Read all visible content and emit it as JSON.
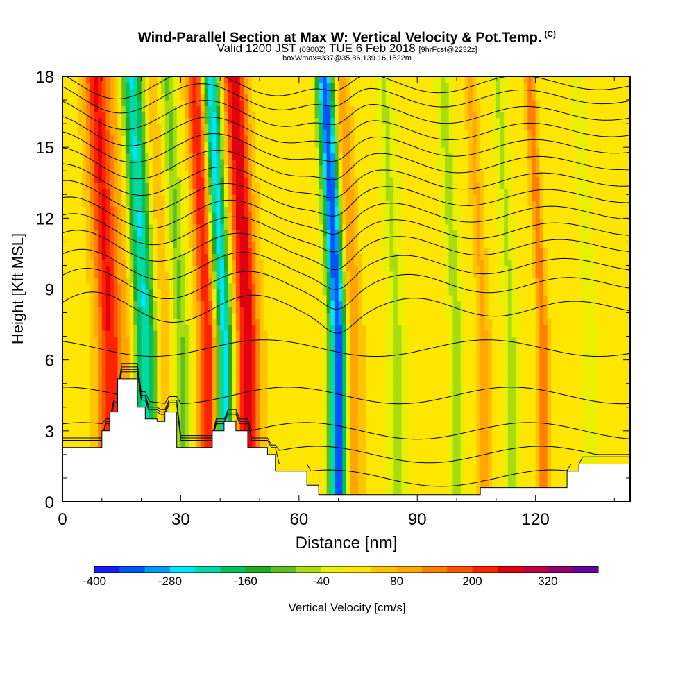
{
  "title": {
    "main": "Wind-Parallel Section at Max W: Vertical Velocity & Pot.Temp.",
    "copyright": "(C)",
    "valid_prefix": "Valid 1200 JST",
    "valid_utc": "(0300Z)",
    "valid_date": "TUE 6 Feb 2018",
    "forecast": "[9hrFcst@2232z]",
    "box_info": "boxWmax=337@35.86,139.16,1822m"
  },
  "colorbar": {
    "label": "Vertical Velocity [cm/s]",
    "colors": [
      "#1a1aff",
      "#0055ff",
      "#0099ff",
      "#00e5ff",
      "#00d9a3",
      "#00c060",
      "#22aa22",
      "#60c020",
      "#a8dc10",
      "#e8f000",
      "#ffe600",
      "#ffc400",
      "#ffa600",
      "#ff8000",
      "#ff5500",
      "#ff2200",
      "#e00010",
      "#c00040",
      "#900070",
      "#6600a0"
    ],
    "tick_labels": [
      "-400",
      "-280",
      "-160",
      "-40",
      "80",
      "200",
      "320"
    ]
  },
  "chart_data": {
    "type": "heatmap",
    "title": "Wind-Parallel Section at Max W: Vertical Velocity & Pot.Temp.",
    "xlabel": "Distance [nm]",
    "ylabel": "Height [Kft MSL]",
    "xlim": [
      0,
      144
    ],
    "ylim": [
      0,
      18
    ],
    "x_ticks": [
      "0",
      "30",
      "60",
      "90",
      "120"
    ],
    "y_ticks": [
      "0",
      "3",
      "6",
      "9",
      "12",
      "15",
      "18"
    ],
    "value_range": [
      -400,
      320
    ],
    "value_units": "cm/s",
    "background_value": -20,
    "bands": [
      {
        "x": 12,
        "w": 3,
        "v": 200
      },
      {
        "x": 17,
        "w": 2.2,
        "v": 60
      },
      {
        "x": 21,
        "w": 3,
        "v": -240
      },
      {
        "x": 26,
        "w": 2.5,
        "v": 60
      },
      {
        "x": 30,
        "w": 2.2,
        "v": -100
      },
      {
        "x": 37,
        "w": 2.2,
        "v": 200
      },
      {
        "x": 41,
        "w": 2.2,
        "v": -260
      },
      {
        "x": 47,
        "w": 2.8,
        "v": 230
      },
      {
        "x": 70,
        "w": 2.2,
        "v": -340
      },
      {
        "x": 74,
        "w": 2,
        "v": 90
      },
      {
        "x": 85,
        "w": 2.5,
        "v": -60
      },
      {
        "x": 100,
        "w": 2,
        "v": -70
      },
      {
        "x": 107,
        "w": 1.5,
        "v": 60
      },
      {
        "x": 114,
        "w": 2,
        "v": -60
      },
      {
        "x": 122,
        "w": 1.2,
        "v": 120
      },
      {
        "x": 134,
        "w": 2,
        "v": -40
      }
    ],
    "terrain_heights": [
      {
        "x": 0,
        "z": 2.3
      },
      {
        "x": 8,
        "z": 2.3
      },
      {
        "x": 10,
        "z": 3.0
      },
      {
        "x": 12,
        "z": 3.8
      },
      {
        "x": 14,
        "z": 5.2
      },
      {
        "x": 17,
        "z": 5.2
      },
      {
        "x": 19,
        "z": 4.0
      },
      {
        "x": 21,
        "z": 3.5
      },
      {
        "x": 24,
        "z": 3.4
      },
      {
        "x": 26,
        "z": 3.8
      },
      {
        "x": 29,
        "z": 2.3
      },
      {
        "x": 35,
        "z": 2.3
      },
      {
        "x": 38,
        "z": 3.0
      },
      {
        "x": 41,
        "z": 3.4
      },
      {
        "x": 44,
        "z": 3.0
      },
      {
        "x": 47,
        "z": 2.3
      },
      {
        "x": 52,
        "z": 2.0
      },
      {
        "x": 54,
        "z": 1.3
      },
      {
        "x": 60,
        "z": 1.3
      },
      {
        "x": 62,
        "z": 0.7
      },
      {
        "x": 65,
        "z": 0.3
      },
      {
        "x": 70,
        "z": 0.3
      },
      {
        "x": 95,
        "z": 0.3
      },
      {
        "x": 106,
        "z": 0.6
      },
      {
        "x": 122,
        "z": 0.6
      },
      {
        "x": 128,
        "z": 1.3
      },
      {
        "x": 131,
        "z": 1.6
      },
      {
        "x": 140,
        "z": 1.6
      },
      {
        "x": 144,
        "z": 1.6
      }
    ],
    "contour_levels_kft": [
      1,
      2,
      3,
      4.5,
      6.5,
      8.2,
      9.2,
      10.0,
      10.8,
      11.5,
      12.2,
      12.9,
      13.6,
      14.3,
      15.0,
      15.7,
      16.4,
      17.1,
      17.7
    ]
  }
}
